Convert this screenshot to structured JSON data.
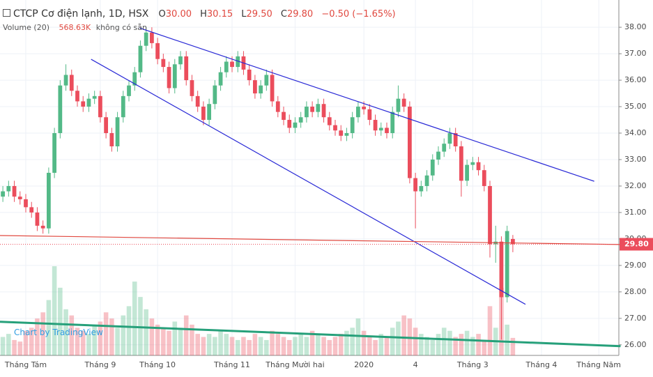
{
  "chart_data": {
    "type": "candlestick",
    "header": {
      "title": "CTCP Cơ điện lạnh, 1D, HSX",
      "o_label": "O",
      "o": "30.00",
      "h_label": "H",
      "h": "30.15",
      "l_label": "L",
      "l": "29.50",
      "c_label": "C",
      "c": "29.80",
      "change": "−0.50 (−1.65%)",
      "volume_title": "Volume (20)",
      "volume_last": "568.63K",
      "volume_note": "không có sẵn"
    },
    "watermark": "Chart by TradingView",
    "categories": [
      null,
      null,
      null,
      null,
      "Tháng Tám",
      null,
      null,
      null,
      null,
      null,
      null,
      null,
      null,
      null,
      null,
      null,
      null,
      "Tháng 9",
      null,
      null,
      null,
      null,
      null,
      null,
      null,
      null,
      null,
      "Tháng 10",
      null,
      null,
      null,
      null,
      null,
      null,
      null,
      null,
      null,
      null,
      null,
      null,
      "Tháng 11",
      null,
      null,
      null,
      null,
      null,
      null,
      null,
      null,
      null,
      null,
      "Tháng Mười hai",
      null,
      null,
      null,
      null,
      null,
      null,
      null,
      null,
      null,
      null,
      null,
      "2020",
      null,
      null,
      null,
      null,
      null,
      null,
      null,
      null,
      "4",
      null,
      null,
      null,
      null,
      null,
      null,
      null,
      null,
      null,
      "Tháng 3",
      null,
      null,
      null,
      null,
      null,
      null,
      null,
      null,
      null,
      null,
      null,
      "Tháng 4",
      null,
      null,
      null,
      null,
      null,
      null,
      null,
      null,
      null,
      "Tháng Năm",
      null,
      null,
      null
    ],
    "open": [
      31.6,
      31.8,
      32.0,
      31.6,
      31.5,
      31.2,
      31.0,
      30.5,
      30.4,
      32.5,
      34.0,
      35.8,
      36.2,
      35.6,
      35.2,
      35.0,
      35.3,
      35.4,
      34.6,
      34.0,
      33.5,
      34.6,
      35.4,
      35.8,
      36.3,
      37.3,
      37.8,
      37.4,
      36.8,
      36.5,
      35.7,
      36.6,
      36.9,
      36.0,
      35.4,
      35.0,
      34.5,
      35.1,
      35.8,
      36.3,
      36.7,
      36.5,
      36.9,
      36.4,
      36.0,
      35.5,
      35.8,
      36.2,
      35.2,
      34.8,
      34.5,
      34.2,
      34.4,
      34.6,
      35.0,
      34.8,
      35.1,
      34.6,
      34.3,
      34.1,
      33.9,
      34.0,
      34.6,
      35.0,
      34.9,
      34.5,
      34.1,
      34.2,
      34.0,
      34.8,
      35.3,
      35.0,
      32.3,
      31.8,
      32.0,
      32.4,
      33.0,
      33.3,
      33.6,
      34.0,
      33.5,
      32.2,
      32.8,
      32.9,
      32.6,
      32.0,
      29.8,
      29.9,
      27.8,
      30.0,
      null,
      null,
      null,
      null,
      null,
      null,
      null,
      null,
      null,
      null,
      null,
      null,
      null,
      null,
      null,
      null,
      null,
      null
    ],
    "high": [
      32.0,
      32.2,
      32.2,
      31.8,
      31.7,
      31.4,
      31.2,
      30.7,
      32.7,
      34.2,
      36.0,
      36.6,
      36.4,
      35.8,
      35.4,
      35.5,
      35.6,
      35.6,
      34.8,
      34.2,
      34.8,
      35.6,
      36.0,
      36.5,
      37.5,
      38.0,
      38.0,
      37.6,
      37.0,
      36.7,
      36.8,
      37.1,
      37.1,
      36.2,
      35.6,
      35.2,
      35.3,
      36.0,
      36.5,
      36.9,
      36.9,
      37.1,
      37.1,
      36.6,
      36.2,
      36.0,
      36.4,
      36.4,
      35.4,
      35.0,
      34.7,
      34.6,
      34.8,
      35.2,
      35.2,
      35.3,
      35.3,
      34.8,
      34.5,
      34.3,
      34.2,
      34.8,
      35.2,
      35.2,
      35.1,
      34.7,
      34.4,
      34.4,
      35.0,
      35.8,
      35.5,
      35.2,
      32.5,
      32.2,
      32.6,
      33.2,
      33.5,
      33.8,
      34.2,
      34.2,
      33.7,
      33.0,
      33.1,
      33.1,
      32.8,
      32.2,
      30.5,
      30.1,
      30.5,
      30.15,
      null,
      null,
      null,
      null,
      null,
      null,
      null,
      null,
      null,
      null,
      null,
      null,
      null,
      null,
      null,
      null,
      null,
      null
    ],
    "low": [
      31.4,
      31.6,
      31.4,
      31.3,
      31.0,
      30.8,
      30.3,
      30.2,
      30.2,
      32.3,
      33.8,
      35.6,
      35.4,
      35.0,
      34.8,
      34.8,
      35.1,
      34.4,
      33.8,
      33.3,
      33.3,
      34.4,
      35.2,
      35.6,
      36.1,
      37.1,
      37.2,
      36.6,
      36.3,
      35.5,
      35.5,
      36.4,
      35.8,
      35.2,
      34.8,
      34.3,
      34.3,
      34.9,
      35.6,
      36.1,
      36.3,
      36.3,
      36.2,
      35.8,
      35.3,
      35.3,
      35.6,
      35.0,
      34.6,
      34.3,
      34.0,
      34.0,
      34.2,
      34.4,
      34.6,
      34.6,
      34.4,
      34.1,
      33.9,
      33.7,
      33.7,
      33.8,
      34.4,
      34.7,
      34.3,
      33.9,
      33.9,
      33.8,
      33.8,
      34.6,
      34.8,
      32.1,
      30.4,
      31.6,
      31.8,
      32.2,
      32.8,
      33.1,
      33.4,
      33.3,
      31.6,
      32.0,
      32.6,
      32.4,
      31.8,
      29.3,
      29.1,
      26.2,
      27.6,
      29.5,
      null,
      null,
      null,
      null,
      null,
      null,
      null,
      null,
      null,
      null,
      null,
      null,
      null,
      null,
      null,
      null,
      null,
      null
    ],
    "close": [
      31.8,
      32.0,
      31.6,
      31.5,
      31.2,
      31.0,
      30.5,
      30.4,
      32.5,
      34.0,
      35.8,
      36.2,
      35.6,
      35.2,
      35.0,
      35.3,
      35.4,
      34.6,
      34.0,
      33.5,
      34.6,
      35.4,
      35.8,
      36.3,
      37.3,
      37.8,
      37.4,
      36.8,
      36.5,
      35.7,
      36.6,
      36.9,
      36.0,
      35.4,
      35.0,
      34.5,
      35.1,
      35.8,
      36.3,
      36.7,
      36.5,
      36.9,
      36.4,
      36.0,
      35.5,
      35.8,
      36.2,
      35.2,
      34.8,
      34.5,
      34.2,
      34.4,
      34.6,
      35.0,
      34.8,
      35.1,
      34.6,
      34.3,
      34.1,
      33.9,
      34.0,
      34.6,
      35.0,
      34.9,
      34.5,
      34.1,
      34.2,
      34.0,
      34.8,
      35.3,
      35.0,
      32.3,
      31.8,
      32.0,
      32.4,
      33.0,
      33.3,
      33.6,
      34.0,
      33.5,
      32.2,
      32.8,
      32.9,
      32.6,
      32.0,
      29.8,
      29.9,
      27.8,
      30.3,
      29.8,
      null,
      null,
      null,
      null,
      null,
      null,
      null,
      null,
      null,
      null,
      null,
      null,
      null,
      null,
      null,
      null,
      null,
      null
    ],
    "volume": [
      600,
      700,
      500,
      450,
      800,
      900,
      1200,
      1400,
      1800,
      2900,
      2200,
      1500,
      1300,
      900,
      800,
      700,
      1000,
      1100,
      1400,
      1200,
      900,
      1300,
      1600,
      2400,
      1900,
      1500,
      1200,
      1000,
      900,
      800,
      1100,
      900,
      1300,
      1000,
      700,
      600,
      700,
      600,
      800,
      700,
      600,
      500,
      600,
      500,
      700,
      600,
      500,
      800,
      700,
      600,
      500,
      600,
      700,
      600,
      800,
      700,
      600,
      500,
      600,
      700,
      800,
      900,
      1200,
      800,
      600,
      500,
      700,
      600,
      900,
      1100,
      1300,
      1200,
      900,
      700,
      600,
      500,
      700,
      900,
      800,
      600,
      700,
      800,
      600,
      700,
      500,
      1600,
      900,
      2200,
      1000,
      568.63,
      null,
      null,
      null,
      null,
      null,
      null,
      null,
      null,
      null,
      null,
      null,
      null,
      null,
      null,
      null,
      null,
      null,
      null
    ],
    "up_color": "#53b987",
    "down_color": "#eb4d5c",
    "ylim": [
      25.6,
      39.03
    ],
    "yticks": [
      {
        "value": 26,
        "label": "26.00"
      },
      {
        "value": 27,
        "label": "27.00"
      },
      {
        "value": 28,
        "label": "28.00"
      },
      {
        "value": 29,
        "label": "29.00"
      },
      {
        "value": 30,
        "label": "30.00"
      },
      {
        "value": 31,
        "label": "31.00"
      },
      {
        "value": 32,
        "label": "32.00"
      },
      {
        "value": 33,
        "label": "33.00"
      },
      {
        "value": 34,
        "label": "34.00"
      },
      {
        "value": 35,
        "label": "35.00"
      },
      {
        "value": 36,
        "label": "36.00"
      },
      {
        "value": 37,
        "label": "37.00"
      },
      {
        "value": 38,
        "label": "38.00"
      }
    ],
    "last_price": {
      "value": 29.8,
      "label": "29.80"
    },
    "grid": true,
    "trendlines": [
      {
        "color": "#2929d6",
        "x": [
          23.9,
          103.2
        ],
        "y": [
          37.97,
          32.18
        ]
      },
      {
        "color": "#2929d6",
        "x": [
          15.4,
          91.2
        ],
        "y": [
          36.79,
          27.53
        ]
      },
      {
        "color": "#e0483f",
        "x": [
          -0.5,
          107.8
        ],
        "y": [
          30.13,
          29.79
        ]
      },
      {
        "color": "#26a07a",
        "x": [
          -0.5,
          107.8
        ],
        "y": [
          26.87,
          25.95
        ]
      }
    ]
  }
}
